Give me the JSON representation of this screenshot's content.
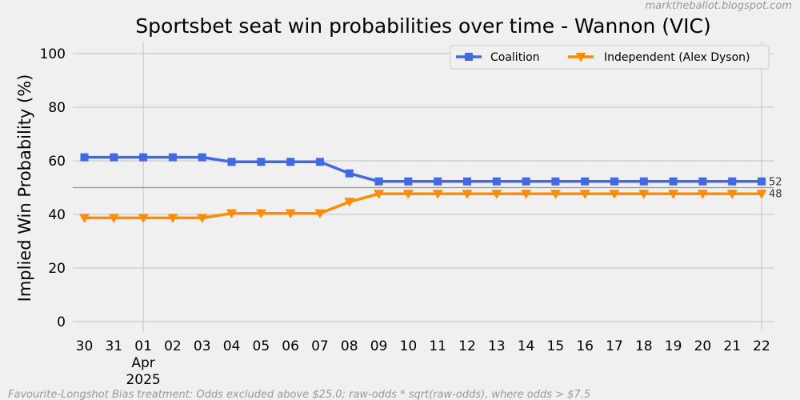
{
  "watermark": "marktheballot.blogspot.com",
  "footnote": "Favourite-Longshot Bias treatment: Odds excluded above $25.0; raw-odds * sqrt(raw-odds), where odds > $7.5",
  "chart_data": {
    "type": "line",
    "title": "Sportsbet seat win probabilities over time - Wannon (VIC)",
    "xlabel": "",
    "ylabel": "Implied Win Probability (%)",
    "ylim": [
      0,
      100
    ],
    "yticks": [
      0,
      20,
      40,
      60,
      80,
      100
    ],
    "reference_line": 50,
    "grid": true,
    "legend_position": "top-right",
    "x": [
      "30",
      "31",
      "01",
      "02",
      "03",
      "04",
      "05",
      "06",
      "07",
      "08",
      "09",
      "10",
      "11",
      "12",
      "13",
      "14",
      "15",
      "16",
      "17",
      "18",
      "19",
      "20",
      "21",
      "22"
    ],
    "x_sublabels": [
      {
        "index": 2,
        "lines": [
          "Apr",
          "2025"
        ]
      }
    ],
    "series": [
      {
        "name": "Coalition",
        "color": "#4169e1",
        "marker": "square",
        "values": [
          61.3,
          61.3,
          61.3,
          61.3,
          61.3,
          59.6,
          59.6,
          59.6,
          59.6,
          55.3,
          52.3,
          52.3,
          52.3,
          52.3,
          52.3,
          52.3,
          52.3,
          52.3,
          52.3,
          52.3,
          52.3,
          52.3,
          52.3,
          52.3
        ],
        "end_label": "52"
      },
      {
        "name": "Independent (Alex Dyson)",
        "color": "#ff8c00",
        "marker": "triangle-down",
        "values": [
          38.7,
          38.7,
          38.7,
          38.7,
          38.7,
          40.4,
          40.4,
          40.4,
          40.4,
          44.7,
          47.7,
          47.7,
          47.7,
          47.7,
          47.7,
          47.7,
          47.7,
          47.7,
          47.7,
          47.7,
          47.7,
          47.7,
          47.7,
          47.7
        ],
        "end_label": "48"
      }
    ]
  }
}
